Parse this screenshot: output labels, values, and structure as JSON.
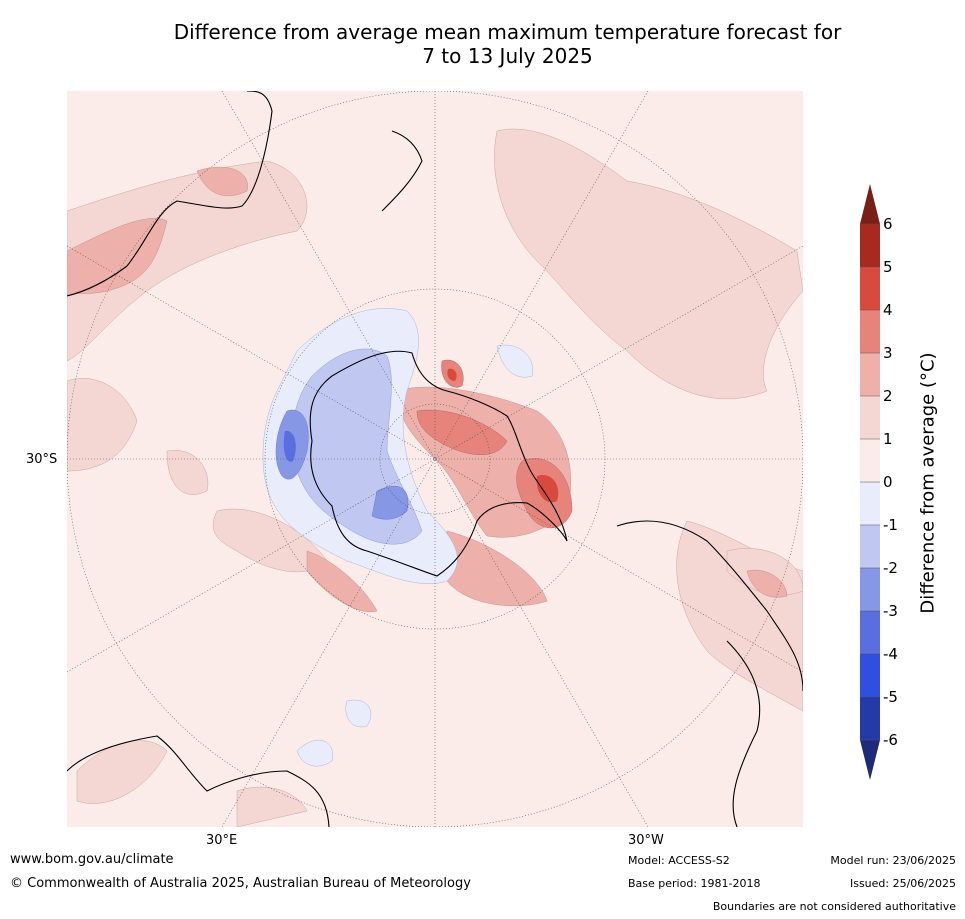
{
  "title_line1": "Difference from average mean maximum temperature forecast for",
  "title_line2": "7 to 13 July 2025",
  "map": {
    "projection": "south polar stereographic",
    "lat_label_30s": "30°S",
    "lon_label_30e": "30°E",
    "lon_label_30w": "30°W"
  },
  "colorbar": {
    "title": "Difference from average (°C)",
    "ticks": [
      "6",
      "5",
      "4",
      "3",
      "2",
      "1",
      "0",
      "-1",
      "-2",
      "-3",
      "-4",
      "-5",
      "-6"
    ],
    "bins": [
      {
        "range": [
          5,
          6
        ],
        "color": "#a8291f"
      },
      {
        "range": [
          4,
          5
        ],
        "color": "#d94a3e"
      },
      {
        "range": [
          3,
          4
        ],
        "color": "#e6847b"
      },
      {
        "range": [
          2,
          3
        ],
        "color": "#edb0aa"
      },
      {
        "range": [
          1,
          2
        ],
        "color": "#f4d6d3"
      },
      {
        "range": [
          0,
          1
        ],
        "color": "#fbecea"
      },
      {
        "range": [
          -1,
          0
        ],
        "color": "#e8ecfb"
      },
      {
        "range": [
          -2,
          -1
        ],
        "color": "#c0c8f1"
      },
      {
        "range": [
          -3,
          -2
        ],
        "color": "#8697e6"
      },
      {
        "range": [
          -4,
          -3
        ],
        "color": "#5a6ee0"
      },
      {
        "range": [
          -5,
          -4
        ],
        "color": "#2f4fe0"
      },
      {
        "range": [
          -6,
          -5
        ],
        "color": "#243aa8"
      }
    ],
    "over_color": "#7a1f16",
    "under_color": "#1f2a78"
  },
  "footer": {
    "website": "www.bom.gov.au/climate",
    "copyright": "© Commonwealth of Australia 2025, Australian Bureau of Meteorology",
    "model": "Model: ACCESS-S2",
    "base_period": "Base period: 1981-2018",
    "model_run": "Model run: 23/06/2025",
    "issued": "Issued: 25/06/2025",
    "disclaimer": "Boundaries are not considered authoritative"
  }
}
